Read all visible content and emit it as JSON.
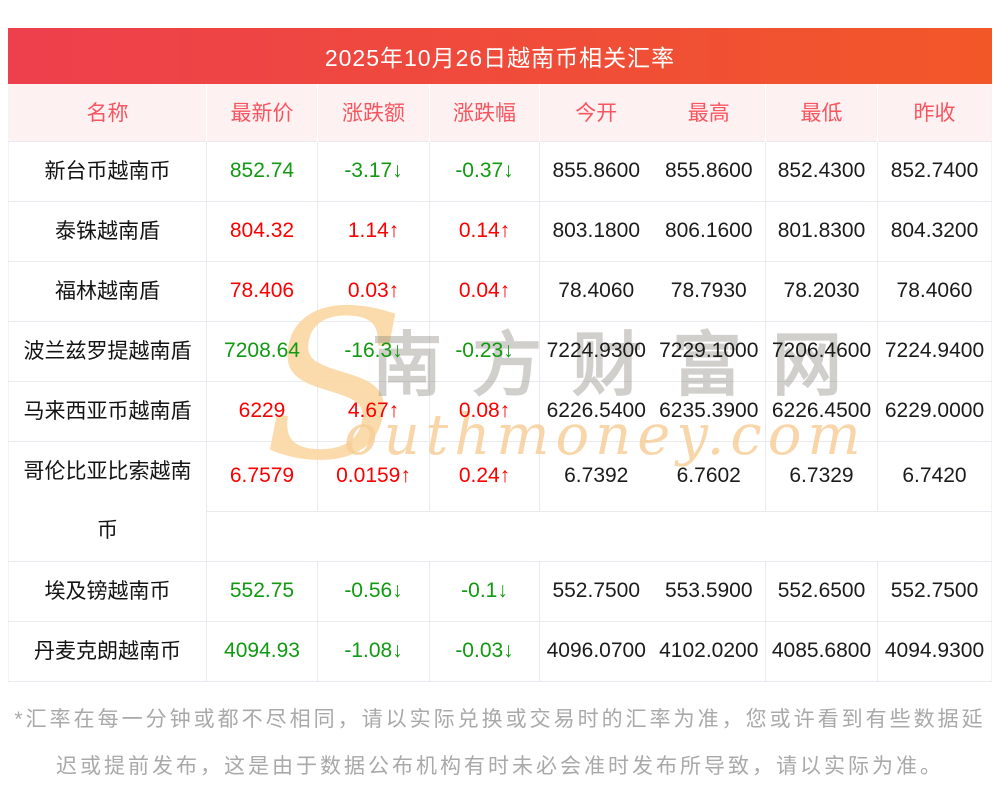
{
  "title": "2025年10月26日越南币相关汇率",
  "colors": {
    "up": "#fb0000",
    "down": "#119a11",
    "bar_left": "#ed3f4d",
    "bar_right": "#f25728",
    "header_text": "#f7555f",
    "header_bg": "#fdf1f1",
    "grid": "#e8eaf0",
    "num": "#1b1b1b",
    "muted": "#a9a9a9"
  },
  "table": {
    "columns": [
      "名称",
      "最新价",
      "涨跌额",
      "涨跌幅",
      "今开",
      "最高",
      "最低",
      "昨收"
    ],
    "rows": [
      {
        "name": "新台币越南币",
        "latest": "852.74",
        "change": "-3.17↓",
        "change_pct": "-0.37↓",
        "trend": "down",
        "open": "855.8600",
        "high": "855.8600",
        "low": "852.4300",
        "prev": "852.7400"
      },
      {
        "name": "泰铢越南盾",
        "latest": "804.32",
        "change": "1.14↑",
        "change_pct": "0.14↑",
        "trend": "up",
        "open": "803.1800",
        "high": "806.1600",
        "low": "801.8300",
        "prev": "804.3200"
      },
      {
        "name": "福林越南盾",
        "latest": "78.406",
        "change": "0.03↑",
        "change_pct": "0.04↑",
        "trend": "up",
        "open": "78.4060",
        "high": "78.7930",
        "low": "78.2030",
        "prev": "78.4060"
      },
      {
        "name": "波兰兹罗提越南盾",
        "latest": "7208.64",
        "change": "-16.3↓",
        "change_pct": "-0.23↓",
        "trend": "down",
        "open": "7224.9300",
        "high": "7229.1000",
        "low": "7206.4600",
        "prev": "7224.9400"
      },
      {
        "name": "马来西亚币越南盾",
        "latest": "6229",
        "change": "4.67↑",
        "change_pct": "0.08↑",
        "trend": "up",
        "open": "6226.5400",
        "high": "6235.3900",
        "low": "6226.4500",
        "prev": "6229.0000"
      },
      {
        "name": "哥伦比亚比索越南币",
        "latest": "6.7579",
        "change": "0.0159↑",
        "change_pct": "0.24↑",
        "trend": "up",
        "open": "6.7392",
        "high": "6.7602",
        "low": "6.7329",
        "prev": "6.7420",
        "tall": true
      },
      {
        "name": "埃及镑越南币",
        "latest": "552.75",
        "change": "-0.56↓",
        "change_pct": "-0.1↓",
        "trend": "down",
        "open": "552.7500",
        "high": "553.5900",
        "low": "552.6500",
        "prev": "552.7500"
      },
      {
        "name": "丹麦克朗越南币",
        "latest": "4094.93",
        "change": "-1.08↓",
        "change_pct": "-0.03↓",
        "trend": "down",
        "open": "4096.0700",
        "high": "4102.0200",
        "low": "4085.6800",
        "prev": "4094.9300"
      }
    ]
  },
  "watermark": {
    "swoosh": "S",
    "script": "outhmoney.com",
    "chinese": "南方财富网"
  },
  "disclaimer": "*汇率在每一分钟或都不尽相同，请以实际兑换或交易时的汇率为准，您或许看到有些数据延迟或提前发布，这是由于数据公布机构有时未必会准时发布所导致，请以实际为准。"
}
